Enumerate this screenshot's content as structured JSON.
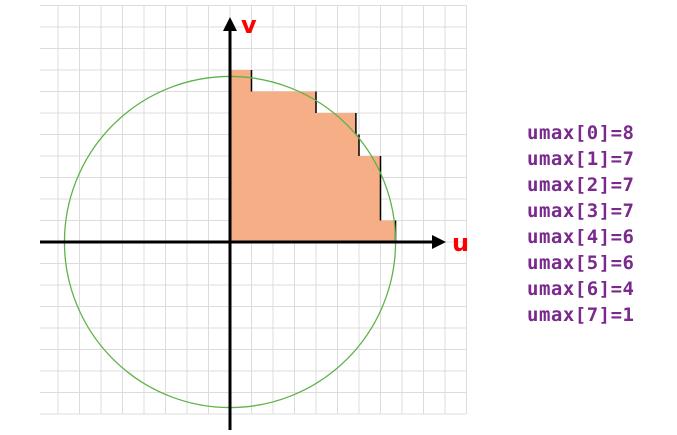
{
  "axes": {
    "u_label": "u",
    "v_label": "v",
    "label_color": "#ff0000",
    "axis_color": "#000000"
  },
  "grid": {
    "visible": true,
    "cell_units": 1,
    "u_range": [
      -9,
      11
    ],
    "v_range": [
      -8,
      11
    ],
    "line_color": "#dcdcdc"
  },
  "circle": {
    "center": [
      0,
      0
    ],
    "radius": 7.7,
    "stroke": "#5fb24a"
  },
  "region": {
    "fill": "#f5ae85",
    "stroke": "#000000"
  },
  "umax": {
    "color": "#7a2a8c",
    "values": [
      8,
      7,
      7,
      7,
      6,
      6,
      4,
      1
    ],
    "lines": [
      "umax[0]=8",
      "umax[1]=7",
      "umax[2]=7",
      "umax[3]=7",
      "umax[4]=6",
      "umax[5]=6",
      "umax[6]=4",
      "umax[7]=1"
    ]
  }
}
